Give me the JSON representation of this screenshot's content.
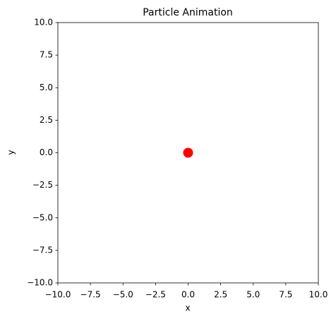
{
  "chart_data": {
    "type": "scatter",
    "title": "Particle Animation",
    "x_label": "x",
    "y_label": "y",
    "x": [
      0
    ],
    "values": [
      0
    ],
    "color": "#ff0000",
    "xlim": [
      -10,
      10
    ],
    "ylim": [
      -10,
      10
    ],
    "xticks": [
      {
        "value": -10,
        "label": "−10.0"
      },
      {
        "value": -7.5,
        "label": "−7.5"
      },
      {
        "value": -5,
        "label": "−5.0"
      },
      {
        "value": -2.5,
        "label": "−2.5"
      },
      {
        "value": 0,
        "label": "0.0"
      },
      {
        "value": 2.5,
        "label": "2.5"
      },
      {
        "value": 5,
        "label": "5.0"
      },
      {
        "value": 7.5,
        "label": "7.5"
      },
      {
        "value": 10,
        "label": "10.0"
      }
    ],
    "yticks": [
      {
        "value": -10,
        "label": "−10.0"
      },
      {
        "value": -7.5,
        "label": "−7.5"
      },
      {
        "value": -5,
        "label": "−5.0"
      },
      {
        "value": -2.5,
        "label": "−2.5"
      },
      {
        "value": 0,
        "label": "0.0"
      },
      {
        "value": 2.5,
        "label": "2.5"
      },
      {
        "value": 5,
        "label": "5.0"
      },
      {
        "value": 7.5,
        "label": "7.5"
      },
      {
        "value": 10,
        "label": "10.0"
      }
    ],
    "grid": false
  }
}
